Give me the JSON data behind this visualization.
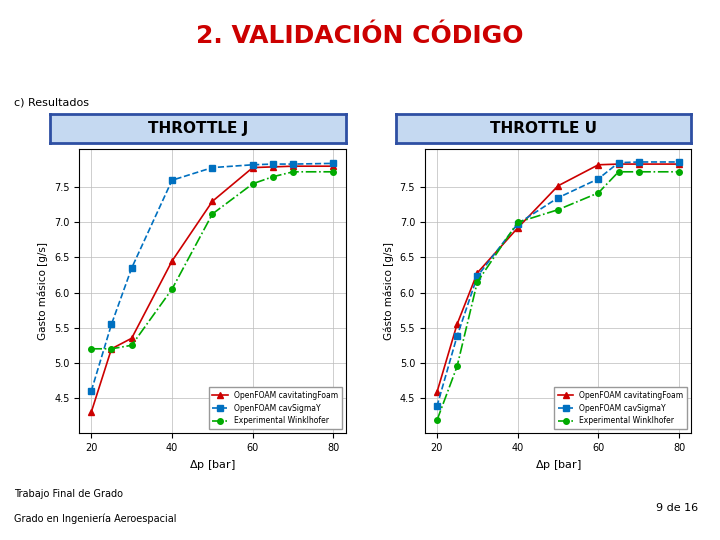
{
  "title": "2. VALIDACIÓN CÓDIGO",
  "subtitle": "c) Resultados",
  "throttle_j_title": "THROTTLE J",
  "throttle_u_title": "THROTTLE U",
  "xlabel": "Δp [bar]",
  "ylabel_j": "Gasto másico [g/s]",
  "ylabel_u": "Gásto másico [g/s]",
  "footer_line1": "Trabajo Final de Grado",
  "footer_line2": "Grado en Ingeniería Aeroespacial",
  "page": "9 de 16",
  "throttle_j": {
    "x": [
      20,
      25,
      30,
      40,
      50,
      60,
      65,
      70,
      80
    ],
    "cavitatingFoam_y": [
      4.3,
      5.2,
      5.35,
      6.45,
      7.3,
      7.78,
      7.79,
      7.8,
      7.8
    ],
    "cavSigmaY_y": [
      4.6,
      5.55,
      6.35,
      7.6,
      7.78,
      7.82,
      7.83,
      7.83,
      7.84
    ],
    "experimental_y": [
      5.2,
      5.2,
      5.25,
      6.05,
      7.12,
      7.55,
      7.65,
      7.72,
      7.72
    ],
    "ylim": [
      4.0,
      8.05
    ],
    "yticks": [
      4.5,
      5.0,
      5.5,
      6.0,
      6.5,
      7.0,
      7.5
    ],
    "xticks": [
      20,
      40,
      60,
      80
    ]
  },
  "throttle_u": {
    "x": [
      20,
      25,
      30,
      40,
      50,
      60,
      65,
      70,
      80
    ],
    "cavitatingFoam_y": [
      4.58,
      5.55,
      6.28,
      6.92,
      7.52,
      7.82,
      7.83,
      7.83,
      7.83
    ],
    "cavSigmaY_y": [
      4.38,
      5.38,
      6.23,
      6.98,
      7.35,
      7.62,
      7.85,
      7.86,
      7.86
    ],
    "experimental_y": [
      4.18,
      4.95,
      6.15,
      7.0,
      7.18,
      7.42,
      7.72,
      7.72,
      7.72
    ],
    "ylim": [
      4.0,
      8.05
    ],
    "yticks": [
      4.5,
      5.0,
      5.5,
      6.0,
      6.5,
      7.0,
      7.5
    ],
    "xticks": [
      20,
      40,
      60,
      80
    ]
  },
  "colors": {
    "cavitatingFoam": "#cc0000",
    "cavSigmaY": "#0070c0",
    "experimental": "#00aa00",
    "slide_bg": "#ffffff",
    "throttle_box_bg": "#c5d9f1",
    "throttle_box_border": "#2e4fa3",
    "grid_color": "#bbbbbb",
    "title_color": "#cc0000",
    "red_line_color": "#cc0000"
  },
  "legend_labels": [
    "OpenFOAM cavitatingFoam",
    "OpenFOAM cavSigmaY",
    "Experimental Winklhofer"
  ]
}
